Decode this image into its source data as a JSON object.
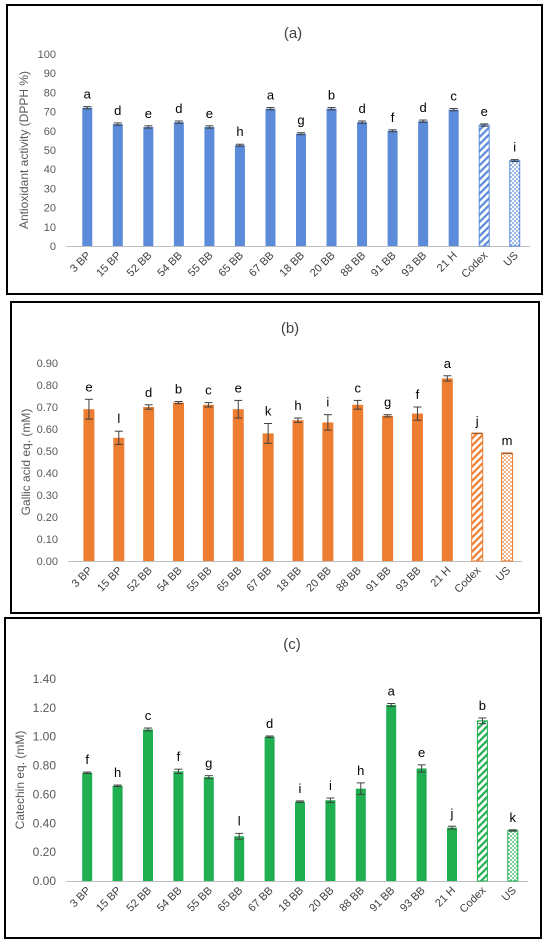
{
  "chart_data": [
    {
      "type": "bar",
      "panel_label": "(a)",
      "ylabel": "Antioxidant activity (DPPH %)",
      "ylim": [
        0,
        100
      ],
      "yticks": [
        "0",
        "10",
        "20",
        "30",
        "40",
        "50",
        "60",
        "70",
        "80",
        "90",
        "100"
      ],
      "categories": [
        "3 BP",
        "15 BP",
        "52 BB",
        "54 BB",
        "55 BB",
        "65 BB",
        "67 BB",
        "18 BB",
        "20 BB",
        "88 BB",
        "91 BB",
        "93 BB",
        "21 H",
        "Codex",
        "US"
      ],
      "values": [
        72,
        63.5,
        62,
        64.5,
        62,
        52.5,
        71.5,
        58.5,
        71.5,
        64.5,
        60,
        65,
        71,
        63,
        44.5
      ],
      "errors": [
        0.6,
        0.6,
        0.6,
        0.6,
        0.6,
        0.5,
        0.6,
        0.5,
        0.6,
        0.6,
        0.5,
        0.6,
        0.6,
        0.6,
        0.5
      ],
      "significance": [
        "a",
        "d",
        "e",
        "d",
        "e",
        "h",
        "a",
        "g",
        "b",
        "d",
        "f",
        "d",
        "c",
        "e",
        "i"
      ],
      "bar_styles": [
        "solid",
        "solid",
        "solid",
        "solid",
        "solid",
        "solid",
        "solid",
        "solid",
        "solid",
        "solid",
        "solid",
        "solid",
        "solid",
        "striped",
        "dotted"
      ],
      "color": "#5B8BD9",
      "grid": false,
      "legend": "none"
    },
    {
      "type": "bar",
      "panel_label": "(b)",
      "ylabel": "Gallic acid eq. (mM)",
      "ylim": [
        0,
        0.9
      ],
      "yticks": [
        "0.00",
        "0.10",
        "0.20",
        "0.30",
        "0.40",
        "0.50",
        "0.60",
        "0.70",
        "0.80",
        "0.90"
      ],
      "categories": [
        "3 BP",
        "15 BP",
        "52 BB",
        "54 BB",
        "55 BB",
        "65 BB",
        "67 BB",
        "18 BB",
        "20 BB",
        "88 BB",
        "91 BB",
        "93 BB",
        "21 H",
        "Codex",
        "US"
      ],
      "values": [
        0.69,
        0.56,
        0.7,
        0.72,
        0.71,
        0.69,
        0.58,
        0.64,
        0.63,
        0.71,
        0.66,
        0.67,
        0.83,
        0.58,
        0.49
      ],
      "errors": [
        0.045,
        0.03,
        0.01,
        0.005,
        0.01,
        0.04,
        0.045,
        0.01,
        0.035,
        0.02,
        0.005,
        0.03,
        0.012,
        0.0,
        0.0
      ],
      "significance": [
        "e",
        "l",
        "d",
        "b",
        "c",
        "e",
        "k",
        "h",
        "i",
        "c",
        "g",
        "f",
        "a",
        "j",
        "m"
      ],
      "bar_styles": [
        "solid",
        "solid",
        "solid",
        "solid",
        "solid",
        "solid",
        "solid",
        "solid",
        "solid",
        "solid",
        "solid",
        "solid",
        "solid",
        "striped",
        "dotted"
      ],
      "color": "#ED7D31",
      "grid": false,
      "legend": "none"
    },
    {
      "type": "bar",
      "panel_label": "(c)",
      "ylabel": "Catechin eq. (mM)",
      "ylim": [
        0,
        1.4
      ],
      "yticks": [
        "0.00",
        "0.20",
        "0.40",
        "0.60",
        "0.80",
        "1.00",
        "1.20",
        "1.40"
      ],
      "categories": [
        "3 BP",
        "15 BP",
        "52 BB",
        "54 BB",
        "55 BB",
        "65 BB",
        "67 BB",
        "18 BB",
        "20 BB",
        "88 BB",
        "91 BB",
        "93 BB",
        "21 H",
        "Codex",
        "US"
      ],
      "values": [
        0.75,
        0.66,
        1.05,
        0.76,
        0.72,
        0.31,
        1.0,
        0.55,
        0.56,
        0.64,
        1.22,
        0.78,
        0.37,
        1.11,
        0.35
      ],
      "errors": [
        0.005,
        0.005,
        0.01,
        0.015,
        0.01,
        0.02,
        0.005,
        0.005,
        0.015,
        0.04,
        0.01,
        0.025,
        0.01,
        0.02,
        0.005
      ],
      "significance": [
        "f",
        "h",
        "c",
        "f",
        "g",
        "l",
        "d",
        "i",
        "i",
        "h",
        "a",
        "e",
        "j",
        "b",
        "k"
      ],
      "bar_styles": [
        "solid",
        "solid",
        "solid",
        "solid",
        "solid",
        "solid",
        "solid",
        "solid",
        "solid",
        "solid",
        "solid",
        "solid",
        "solid",
        "striped",
        "dotted"
      ],
      "color": "#1FAE50",
      "grid": false,
      "legend": "none"
    }
  ]
}
